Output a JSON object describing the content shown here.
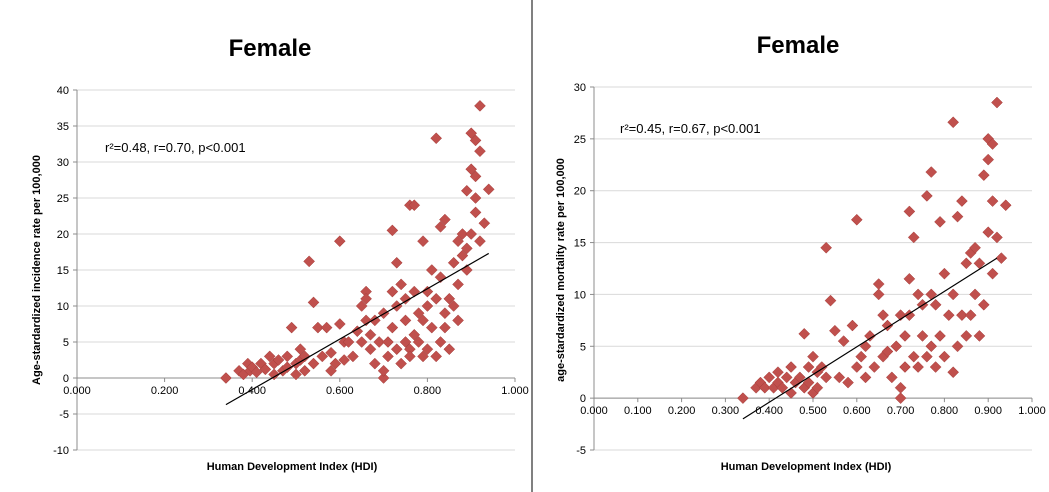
{
  "chart_data": [
    {
      "type": "scatter",
      "title": "Female",
      "xlabel": "Human Development Index (HDI)",
      "ylabel": "Age-stardardized incidence rate per 100,000",
      "annotation": "r²=0.48, r=0.70, p<0.001",
      "xlim": [
        0,
        1
      ],
      "ylim": [
        -10,
        40
      ],
      "xticks": [
        "0.000",
        "0.200",
        "0.400",
        "0.600",
        "0.800",
        "1.000"
      ],
      "xtick_values": [
        0,
        0.2,
        0.4,
        0.6,
        0.8,
        1.0
      ],
      "yticks": [
        "-10",
        "-5",
        "0",
        "5",
        "10",
        "15",
        "20",
        "25",
        "30",
        "35",
        "40"
      ],
      "ytick_values": [
        -10,
        -5,
        0,
        5,
        10,
        15,
        20,
        25,
        30,
        35,
        40
      ],
      "grid": true,
      "marker_color": "#c0504d",
      "trendline": [
        [
          0.34,
          -3.7
        ],
        [
          0.94,
          17.3
        ]
      ],
      "points": [
        [
          0.34,
          0
        ],
        [
          0.37,
          1
        ],
        [
          0.38,
          0.5
        ],
        [
          0.39,
          2
        ],
        [
          0.395,
          1
        ],
        [
          0.4,
          1.5
        ],
        [
          0.41,
          0.8
        ],
        [
          0.42,
          2
        ],
        [
          0.43,
          1.2
        ],
        [
          0.44,
          3
        ],
        [
          0.45,
          2
        ],
        [
          0.45,
          0.5
        ],
        [
          0.46,
          2.5
        ],
        [
          0.47,
          1
        ],
        [
          0.48,
          3
        ],
        [
          0.48,
          1.5
        ],
        [
          0.49,
          7
        ],
        [
          0.5,
          2
        ],
        [
          0.5,
          0.5
        ],
        [
          0.51,
          4
        ],
        [
          0.51,
          2.5
        ],
        [
          0.52,
          1
        ],
        [
          0.52,
          3
        ],
        [
          0.53,
          16.2
        ],
        [
          0.54,
          10.5
        ],
        [
          0.54,
          2
        ],
        [
          0.55,
          7
        ],
        [
          0.56,
          3
        ],
        [
          0.57,
          7
        ],
        [
          0.58,
          1
        ],
        [
          0.58,
          3.5
        ],
        [
          0.59,
          2
        ],
        [
          0.6,
          19
        ],
        [
          0.6,
          7.5
        ],
        [
          0.61,
          5
        ],
        [
          0.61,
          2.5
        ],
        [
          0.62,
          5
        ],
        [
          0.63,
          3
        ],
        [
          0.64,
          6.5
        ],
        [
          0.65,
          5
        ],
        [
          0.65,
          10
        ],
        [
          0.66,
          12
        ],
        [
          0.66,
          11
        ],
        [
          0.66,
          8
        ],
        [
          0.67,
          4
        ],
        [
          0.67,
          6
        ],
        [
          0.68,
          2
        ],
        [
          0.68,
          8
        ],
        [
          0.69,
          5
        ],
        [
          0.7,
          0
        ],
        [
          0.7,
          1
        ],
        [
          0.7,
          9
        ],
        [
          0.71,
          5
        ],
        [
          0.71,
          3
        ],
        [
          0.72,
          20.5
        ],
        [
          0.72,
          12
        ],
        [
          0.72,
          7
        ],
        [
          0.73,
          10
        ],
        [
          0.73,
          16
        ],
        [
          0.73,
          4
        ],
        [
          0.74,
          2
        ],
        [
          0.74,
          13
        ],
        [
          0.75,
          5
        ],
        [
          0.75,
          8
        ],
        [
          0.75,
          11
        ],
        [
          0.76,
          4
        ],
        [
          0.76,
          3
        ],
        [
          0.76,
          24
        ],
        [
          0.77,
          24
        ],
        [
          0.77,
          6
        ],
        [
          0.77,
          12
        ],
        [
          0.78,
          9
        ],
        [
          0.78,
          5
        ],
        [
          0.79,
          8
        ],
        [
          0.79,
          19
        ],
        [
          0.79,
          3
        ],
        [
          0.8,
          10
        ],
        [
          0.8,
          12
        ],
        [
          0.8,
          4
        ],
        [
          0.81,
          7
        ],
        [
          0.81,
          15
        ],
        [
          0.82,
          33.3
        ],
        [
          0.82,
          3
        ],
        [
          0.82,
          11
        ],
        [
          0.83,
          14
        ],
        [
          0.83,
          5
        ],
        [
          0.83,
          21
        ],
        [
          0.84,
          9
        ],
        [
          0.84,
          22
        ],
        [
          0.84,
          7
        ],
        [
          0.85,
          11
        ],
        [
          0.85,
          4
        ],
        [
          0.86,
          10
        ],
        [
          0.86,
          16
        ],
        [
          0.87,
          13
        ],
        [
          0.87,
          8
        ],
        [
          0.87,
          19
        ],
        [
          0.88,
          20
        ],
        [
          0.88,
          17
        ],
        [
          0.89,
          18
        ],
        [
          0.89,
          15
        ],
        [
          0.89,
          26
        ],
        [
          0.9,
          29
        ],
        [
          0.9,
          34
        ],
        [
          0.9,
          20
        ],
        [
          0.91,
          33
        ],
        [
          0.91,
          28
        ],
        [
          0.91,
          25
        ],
        [
          0.91,
          23
        ],
        [
          0.92,
          37.8
        ],
        [
          0.92,
          31.5
        ],
        [
          0.92,
          19
        ],
        [
          0.93,
          21.5
        ],
        [
          0.94,
          26.2
        ]
      ]
    },
    {
      "type": "scatter",
      "title": "Female",
      "xlabel": "Human Development Index (HDI)",
      "ylabel": "age-stardardized mortality rate per 100,000",
      "annotation": "r²=0.45, r=0.67, p<0.001",
      "xlim": [
        0,
        1
      ],
      "ylim": [
        -5,
        30
      ],
      "xticks": [
        "0.000",
        "0.100",
        "0.200",
        "0.300",
        "0.400",
        "0.500",
        "0.600",
        "0.700",
        "0.800",
        "0.900",
        "1.000"
      ],
      "xtick_values": [
        0,
        0.1,
        0.2,
        0.3,
        0.4,
        0.5,
        0.6,
        0.7,
        0.8,
        0.9,
        1.0
      ],
      "yticks": [
        "-5",
        "0",
        "5",
        "10",
        "15",
        "20",
        "25",
        "30"
      ],
      "ytick_values": [
        -5,
        0,
        5,
        10,
        15,
        20,
        25,
        30
      ],
      "grid": true,
      "marker_color": "#c0504d",
      "trendline": [
        [
          0.34,
          -2
        ],
        [
          0.92,
          13.5
        ]
      ],
      "points": [
        [
          0.34,
          0
        ],
        [
          0.37,
          1
        ],
        [
          0.38,
          1.5
        ],
        [
          0.39,
          1
        ],
        [
          0.4,
          2
        ],
        [
          0.41,
          1
        ],
        [
          0.42,
          1.5
        ],
        [
          0.42,
          2.5
        ],
        [
          0.43,
          1
        ],
        [
          0.44,
          2
        ],
        [
          0.45,
          0.5
        ],
        [
          0.45,
          3
        ],
        [
          0.46,
          1.5
        ],
        [
          0.47,
          2
        ],
        [
          0.48,
          6.2
        ],
        [
          0.48,
          1
        ],
        [
          0.49,
          3
        ],
        [
          0.49,
          1.5
        ],
        [
          0.5,
          4
        ],
        [
          0.5,
          0.5
        ],
        [
          0.51,
          2.5
        ],
        [
          0.51,
          1
        ],
        [
          0.52,
          3
        ],
        [
          0.53,
          14.5
        ],
        [
          0.53,
          2
        ],
        [
          0.54,
          9.4
        ],
        [
          0.55,
          6.5
        ],
        [
          0.56,
          2
        ],
        [
          0.57,
          5.5
        ],
        [
          0.58,
          1.5
        ],
        [
          0.59,
          7
        ],
        [
          0.6,
          17.2
        ],
        [
          0.6,
          3
        ],
        [
          0.61,
          4
        ],
        [
          0.62,
          5
        ],
        [
          0.62,
          2
        ],
        [
          0.63,
          6
        ],
        [
          0.64,
          3
        ],
        [
          0.65,
          10
        ],
        [
          0.65,
          11
        ],
        [
          0.66,
          8
        ],
        [
          0.66,
          4
        ],
        [
          0.67,
          4.5
        ],
        [
          0.67,
          7
        ],
        [
          0.68,
          2
        ],
        [
          0.69,
          5
        ],
        [
          0.7,
          0
        ],
        [
          0.7,
          1
        ],
        [
          0.7,
          8
        ],
        [
          0.71,
          6
        ],
        [
          0.71,
          3
        ],
        [
          0.72,
          18
        ],
        [
          0.72,
          11.5
        ],
        [
          0.72,
          8
        ],
        [
          0.73,
          15.5
        ],
        [
          0.73,
          4
        ],
        [
          0.74,
          10
        ],
        [
          0.74,
          3
        ],
        [
          0.75,
          6
        ],
        [
          0.75,
          9
        ],
        [
          0.76,
          19.5
        ],
        [
          0.76,
          4
        ],
        [
          0.77,
          21.8
        ],
        [
          0.77,
          10
        ],
        [
          0.77,
          5
        ],
        [
          0.78,
          9
        ],
        [
          0.78,
          3
        ],
        [
          0.79,
          17
        ],
        [
          0.79,
          6
        ],
        [
          0.8,
          12
        ],
        [
          0.8,
          4
        ],
        [
          0.81,
          8
        ],
        [
          0.82,
          26.6
        ],
        [
          0.82,
          2.5
        ],
        [
          0.82,
          10
        ],
        [
          0.83,
          17.5
        ],
        [
          0.83,
          5
        ],
        [
          0.84,
          19
        ],
        [
          0.84,
          8
        ],
        [
          0.85,
          13
        ],
        [
          0.85,
          6
        ],
        [
          0.86,
          8
        ],
        [
          0.86,
          14
        ],
        [
          0.87,
          10
        ],
        [
          0.87,
          14.5
        ],
        [
          0.88,
          13
        ],
        [
          0.88,
          6
        ],
        [
          0.89,
          9
        ],
        [
          0.89,
          21.5
        ],
        [
          0.9,
          23
        ],
        [
          0.9,
          16
        ],
        [
          0.9,
          25
        ],
        [
          0.91,
          19
        ],
        [
          0.91,
          24.5
        ],
        [
          0.91,
          12
        ],
        [
          0.92,
          28.5
        ],
        [
          0.92,
          15.5
        ],
        [
          0.93,
          13.5
        ],
        [
          0.94,
          18.6
        ]
      ]
    }
  ]
}
